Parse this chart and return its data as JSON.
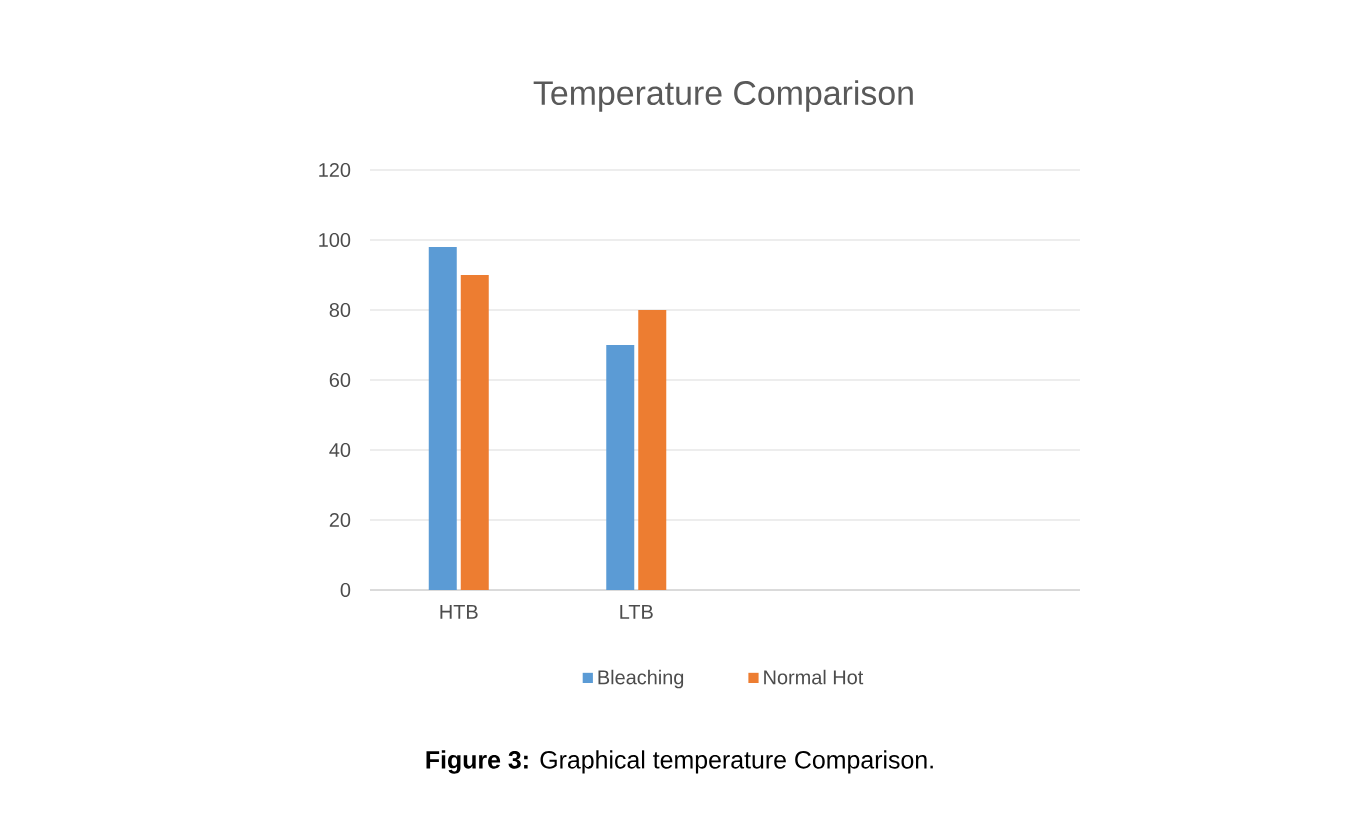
{
  "chart_data": {
    "type": "bar",
    "title": "Temperature Comparison",
    "categories": [
      "HTB",
      "LTB",
      null,
      null
    ],
    "series": [
      {
        "name": "Bleaching",
        "color": "#5b9bd5",
        "values": [
          98,
          70,
          null,
          null
        ]
      },
      {
        "name": "Normal Hot",
        "color": "#ed7d31",
        "values": [
          90,
          80,
          null,
          null
        ]
      }
    ],
    "ylim": [
      0,
      120
    ],
    "yticks": [
      0,
      20,
      40,
      60,
      80,
      100,
      120
    ],
    "grid": "y",
    "legend": "bottom",
    "annotations": [
      "**Figure 3:** Graphical temperature Comparison."
    ]
  }
}
